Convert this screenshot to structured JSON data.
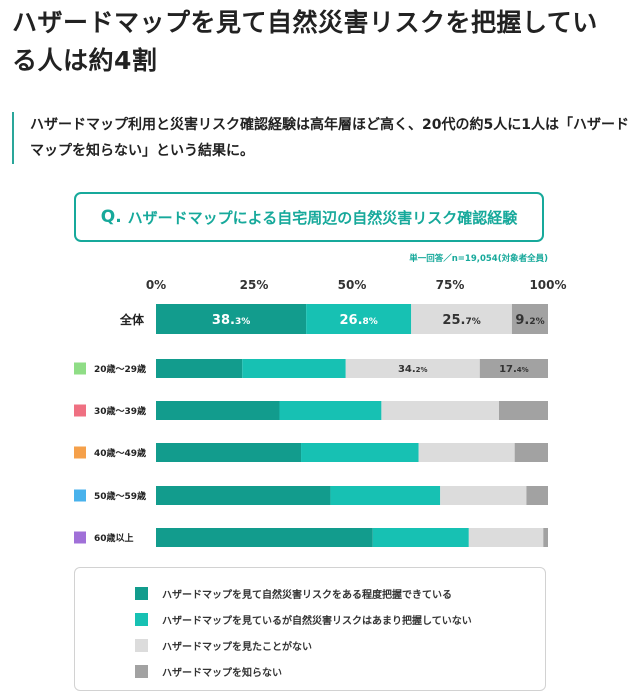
{
  "headline": "ハザードマップを見て自然災害リスクを把握している人は約4割",
  "lead": "ハザードマップ利用と災害リスク確認経験は高年層ほど高く、20代の約5人に1人は「ハザードマップを知らない」という結果に。",
  "question": {
    "prefix": "Q.",
    "text": "ハザードマップによる自宅周辺の自然災害リスク確認経験"
  },
  "sample_note": "単一回答／n=19,054(対象者全員)",
  "chart_data": {
    "type": "bar",
    "orientation": "horizontal-stacked",
    "x_ticks": [
      "0%",
      "25%",
      "50%",
      "75%",
      "100%"
    ],
    "xlim": [
      0,
      100
    ],
    "categories": [
      "全体",
      "20歳～29歳",
      "30歳～39歳",
      "40歳～49歳",
      "50歳～59歳",
      "60歳以上"
    ],
    "category_colors": [
      null,
      "#8fdd86",
      "#ef7082",
      "#f5a04a",
      "#48b2ec",
      "#a070d8"
    ],
    "series": [
      {
        "name": "ハザードマップを見て自然災害リスクをある程度把握できている",
        "color": "#129c8d",
        "values": [
          38.3,
          22.0,
          31.5,
          37.0,
          44.5,
          55.3
        ]
      },
      {
        "name": "ハザードマップを見ているが自然災害リスクはあまり把握していない",
        "color": "#17c1b3",
        "values": [
          26.8,
          26.4,
          26.0,
          30.0,
          28.0,
          24.5
        ]
      },
      {
        "name": "ハザードマップを見たことがない",
        "color": "#dcdcdc",
        "values": [
          25.7,
          34.2,
          30.0,
          24.5,
          22.0,
          19.0
        ]
      },
      {
        "name": "ハザードマップを知らない",
        "color": "#a2a2a2",
        "values": [
          9.2,
          17.4,
          12.5,
          8.5,
          5.5,
          1.2
        ]
      }
    ],
    "data_labels": [
      [
        {
          "series": 0,
          "main": "38.",
          "small": "3%"
        },
        {
          "series": 1,
          "main": "26.",
          "small": "8%"
        },
        {
          "series": 2,
          "main": "25.",
          "small": "7%"
        },
        {
          "series": 3,
          "main": "9.",
          "small": "2%"
        }
      ],
      [
        {
          "series": 2,
          "main": "34.",
          "small": "2%"
        },
        {
          "series": 3,
          "main": "17.",
          "small": "4%"
        }
      ],
      [],
      [],
      [],
      []
    ]
  }
}
